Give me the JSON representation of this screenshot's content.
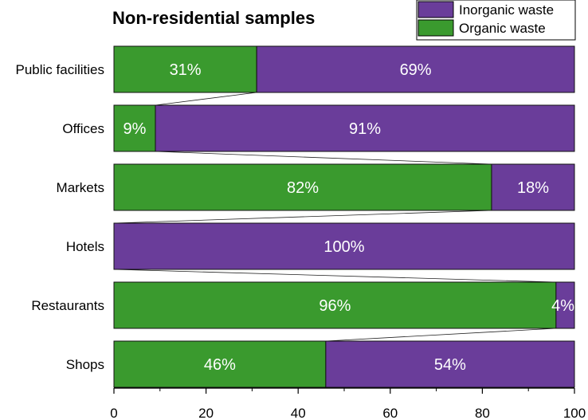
{
  "chart_data": {
    "type": "bar",
    "orientation": "horizontal",
    "stacked": true,
    "title": "Non-residential samples",
    "categories": [
      "Public facilities",
      "Offices",
      "Markets",
      "Hotels",
      "Restaurants",
      "Shops"
    ],
    "series": [
      {
        "name": "Organic waste",
        "values": [
          31,
          9,
          82,
          0,
          96,
          46
        ],
        "labels": [
          "31%",
          "9%",
          "82%",
          "",
          "96%",
          "46%"
        ],
        "color": "#3a9a2e"
      },
      {
        "name": "Inorganic waste",
        "values": [
          69,
          91,
          18,
          100,
          4,
          54
        ],
        "labels": [
          "69%",
          "91%",
          "18%",
          "100%",
          "4%",
          "54%"
        ],
        "color": "#6a3d9a"
      }
    ],
    "xlim": [
      0,
      100
    ],
    "xticks": [
      0,
      20,
      40,
      60,
      80,
      100
    ],
    "xlabel": "",
    "ylabel": "",
    "legend_position": "top-right",
    "connector_lines": true,
    "grid": false
  }
}
